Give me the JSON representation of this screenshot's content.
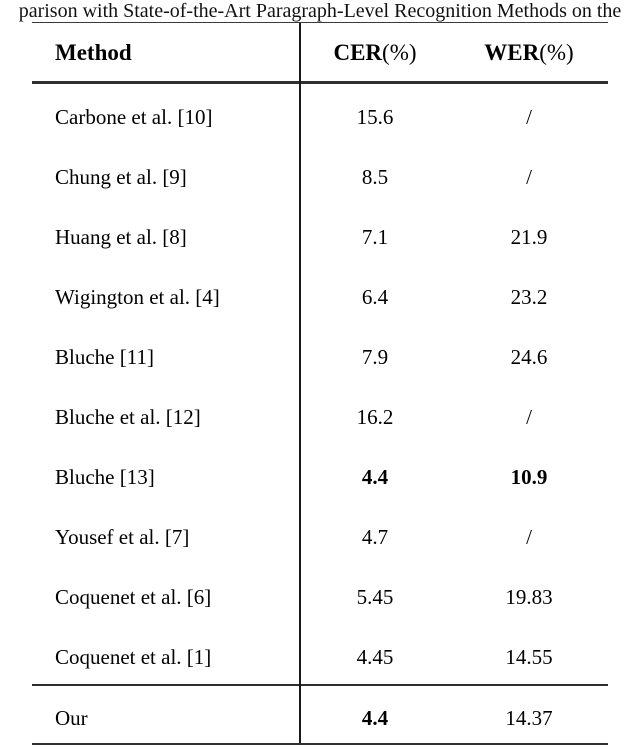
{
  "caption": {
    "text": "parison with State-of-the-Art Paragraph-Level Recognition Methods on the"
  },
  "table": {
    "header": {
      "method": "Method",
      "cer_strong": "CER",
      "cer_rest": "(%)",
      "wer_strong": "WER",
      "wer_rest": "(%)"
    },
    "rows": [
      {
        "method": "Carbone et al. [10]",
        "cer": "15.6",
        "wer": "/",
        "cer_bold": false,
        "wer_bold": false
      },
      {
        "method": "Chung et al. [9]",
        "cer": "8.5",
        "wer": "/",
        "cer_bold": false,
        "wer_bold": false
      },
      {
        "method": "Huang et al. [8]",
        "cer": "7.1",
        "wer": "21.9",
        "cer_bold": false,
        "wer_bold": false
      },
      {
        "method": "Wigington et al. [4]",
        "cer": "6.4",
        "wer": "23.2",
        "cer_bold": false,
        "wer_bold": false
      },
      {
        "method": "Bluche [11]",
        "cer": "7.9",
        "wer": "24.6",
        "cer_bold": false,
        "wer_bold": false
      },
      {
        "method": "Bluche et al. [12]",
        "cer": "16.2",
        "wer": "/",
        "cer_bold": false,
        "wer_bold": false
      },
      {
        "method": "Bluche [13]",
        "cer": "4.4",
        "wer": "10.9",
        "cer_bold": true,
        "wer_bold": true
      },
      {
        "method": "Yousef et al. [7]",
        "cer": "4.7",
        "wer": "/",
        "cer_bold": false,
        "wer_bold": false
      },
      {
        "method": "Coquenet et al. [6]",
        "cer": "5.45",
        "wer": "19.83",
        "cer_bold": false,
        "wer_bold": false
      },
      {
        "method": "Coquenet et al. [1]",
        "cer": "4.45",
        "wer": "14.55",
        "cer_bold": false,
        "wer_bold": false
      }
    ],
    "footer_row": {
      "method": "Our",
      "cer": "4.4",
      "wer": "14.37",
      "cer_bold": true,
      "wer_bold": false
    }
  },
  "colors": {
    "background": "#ffffff",
    "text": "#000000",
    "rule": "#2f2f2f"
  }
}
